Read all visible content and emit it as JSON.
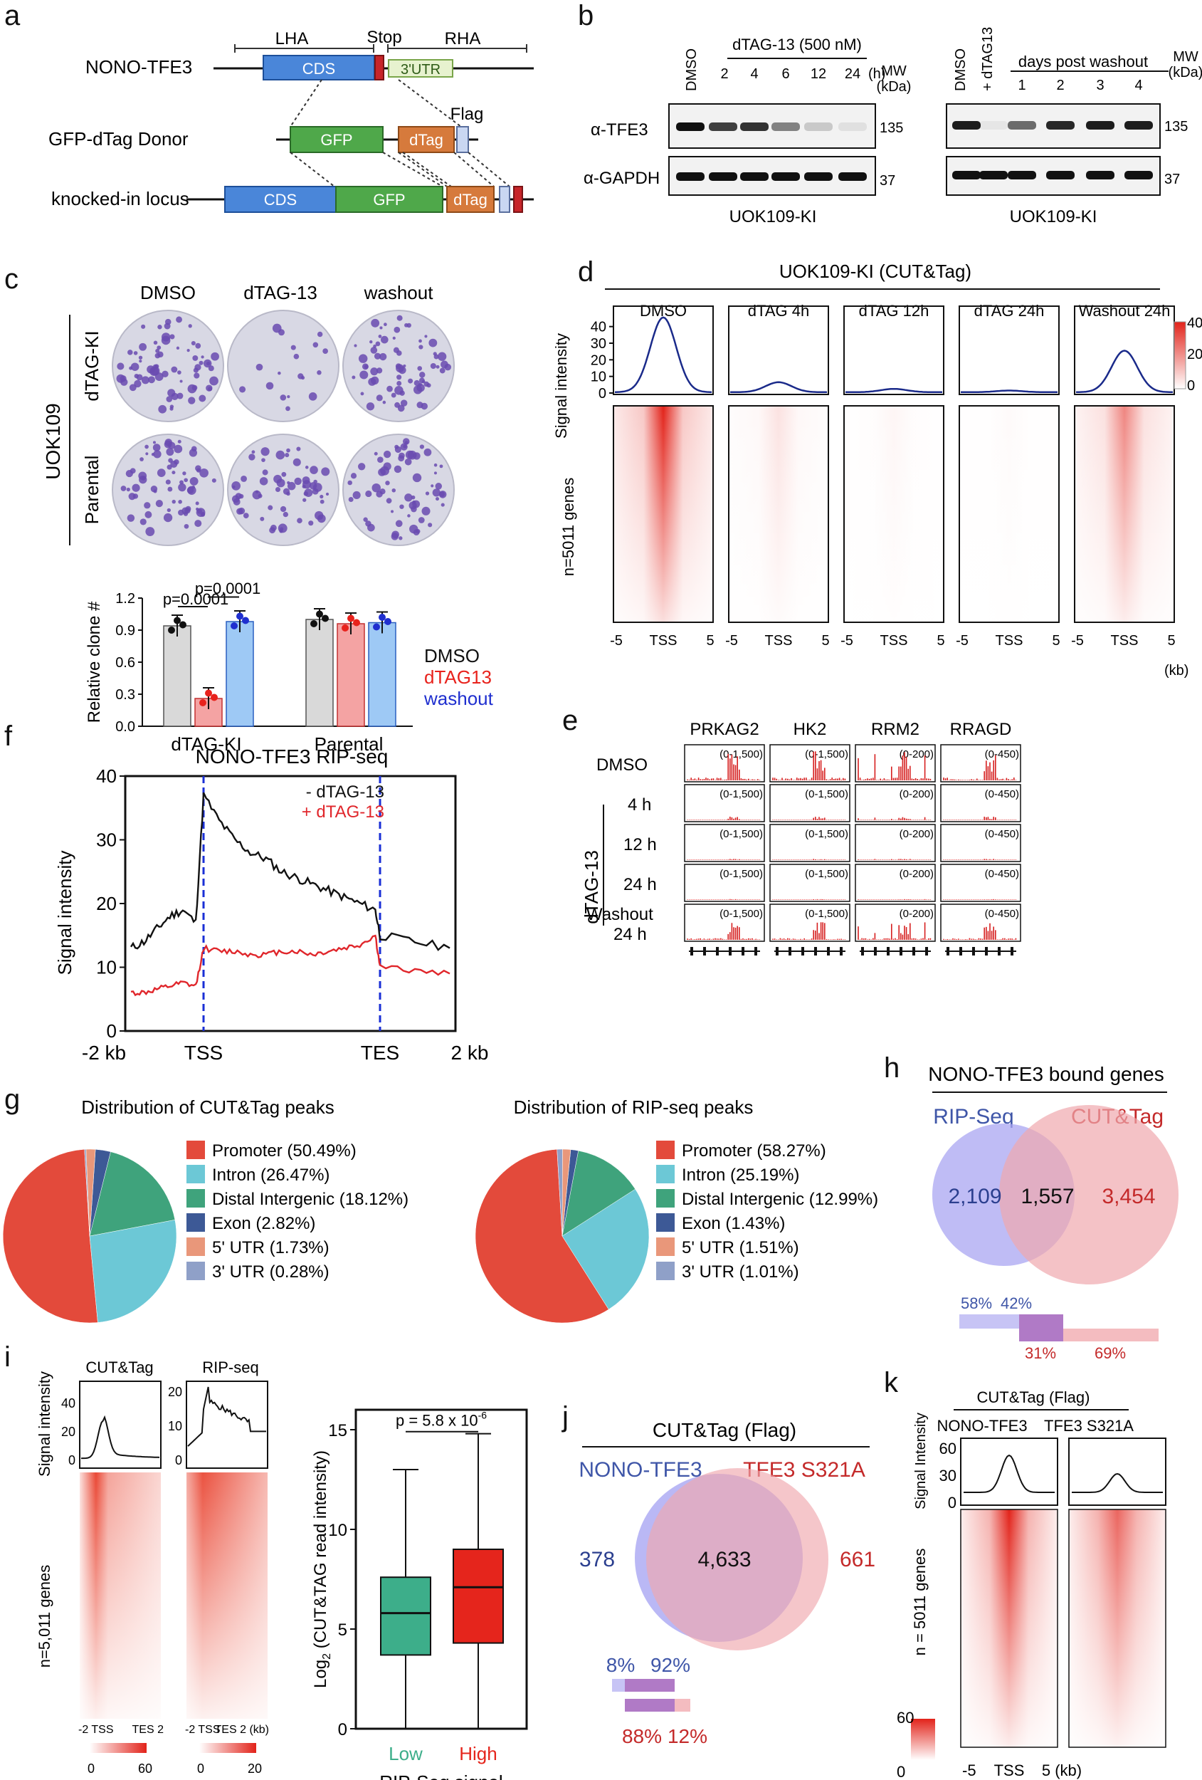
{
  "figure": {
    "panel_letters": [
      "a",
      "b",
      "c",
      "d",
      "e",
      "f",
      "g",
      "h",
      "i",
      "j",
      "k"
    ]
  },
  "panel_a": {
    "construct_label": "NONO-TFE3",
    "lha": "LHA",
    "stop": "Stop",
    "rha": "RHA",
    "cds": "CDS",
    "utr": "3'UTR",
    "donor_label": "GFP-dTag Donor",
    "gfp": "GFP",
    "dtag": "dTag",
    "flag": "Flag",
    "ki_label": "knocked-in locus"
  },
  "panel_b": {
    "blot1": {
      "lanes": [
        "DMSO",
        "2",
        "4",
        "6",
        "12",
        "24"
      ],
      "treatment": "dTAG-13 (500 nM)",
      "hours": "(h)",
      "cell_line": "UOK109-KI"
    },
    "blot2": {
      "lanes": [
        "DMSO",
        "+ dTAG13",
        "1",
        "2",
        "3",
        "4"
      ],
      "treatment": "days post washout",
      "cell_line": "UOK109-KI"
    },
    "mw": "MW",
    "kda": "(kDa)",
    "tfe3": "α-TFE3",
    "gapdh": "α-GAPDH",
    "mw135": "135",
    "mw37": "37"
  },
  "panel_c": {
    "cols": [
      "DMSO",
      "dTAG-13",
      "washout"
    ],
    "rows": [
      "dTAG-KI",
      "Parental"
    ],
    "cell_line": "UOK109",
    "chart_data": {
      "type": "bar",
      "categories": [
        "dTAG-KI",
        "Parental"
      ],
      "series": [
        {
          "name": "DMSO",
          "values": [
            0.94,
            1.0
          ],
          "color": "#d9d9d9"
        },
        {
          "name": "dTAG13",
          "values": [
            0.26,
            0.96
          ],
          "color": "#f4a3a3"
        },
        {
          "name": "washout",
          "values": [
            0.98,
            0.97
          ],
          "color": "#9ec9f5"
        }
      ],
      "ylabel": "Relative clone #",
      "yticks": [
        "0.0",
        "0.3",
        "0.6",
        "0.9",
        "1.2"
      ],
      "ylim": [
        0,
        1.2
      ],
      "annotations": [
        "p=0.0001",
        "p=0.0001"
      ]
    },
    "legend": [
      "DMSO",
      "dTAG13",
      "washout"
    ],
    "legend_colors": [
      "#111111",
      "#e8221c",
      "#1f2fcf"
    ]
  },
  "panel_d": {
    "title": "UOK109-KI (CUT&Tag)",
    "conditions": [
      "DMSO",
      "dTAG 4h",
      "dTAG 12h",
      "dTAG 24h",
      "Washout 24h"
    ],
    "chart_data": {
      "type": "line",
      "profile_peaks": [
        45,
        6,
        2,
        1,
        25
      ],
      "ylabel": "Signal intensity",
      "yticks": [
        "0",
        "10",
        "20",
        "30",
        "40"
      ],
      "ylim": [
        0,
        48
      ],
      "xticks": [
        "-5",
        "TSS",
        "5"
      ],
      "heatmap_scale": [
        "40",
        "20",
        "0"
      ]
    },
    "genes_label": "n=5011 genes",
    "kb": "(kb)"
  },
  "panel_e": {
    "genes": [
      "PRKAG2",
      "HK2",
      "RRM2",
      "RRAGD"
    ],
    "ranges": [
      "(0-1,500)",
      "(0-1,500)",
      "(0-200)",
      "(0-450)"
    ],
    "rows": [
      "DMSO",
      "4 h",
      "12 h",
      "24 h",
      "Washout",
      "24 h"
    ],
    "drug": "dTAG-13"
  },
  "panel_f": {
    "title": "NONO-TFE3 RIP-seq",
    "legend_minus": "- dTAG-13",
    "legend_plus": "+ dTAG-13",
    "chart_data": {
      "type": "line",
      "ylabel": "Signal intensity",
      "yticks": [
        "0",
        "10",
        "20",
        "30",
        "40"
      ],
      "ylim": [
        0,
        40
      ],
      "xticks": [
        "-2 kb",
        "TSS",
        "TES",
        "2 kb"
      ],
      "series": [
        {
          "name": "- dTAG-13",
          "values": [
            13,
            14,
            16,
            18,
            19,
            17,
            37,
            33,
            30,
            28,
            27,
            25,
            24,
            23,
            22,
            21,
            20,
            19,
            15,
            14,
            13
          ]
        },
        {
          "name": "+ dTAG-13",
          "values": [
            6,
            6,
            6.5,
            7,
            7.5,
            7,
            13,
            12.5,
            12.5,
            12,
            12,
            12.5,
            12.5,
            12,
            12.5,
            13,
            13.5,
            15,
            10,
            9.5,
            9
          ]
        }
      ]
    }
  },
  "panel_g": {
    "chart_data": [
      {
        "type": "pie",
        "title": "Distribution of CUT&Tag peaks",
        "labels": [
          "Promoter (50.49%)",
          "Intron (26.47%)",
          "Distal Intergenic (18.12%)",
          "Exon (2.82%)",
          "5' UTR (1.73%)",
          "3' UTR (0.28%)"
        ],
        "values": [
          50.49,
          26.47,
          18.12,
          2.82,
          1.73,
          0.28
        ]
      },
      {
        "type": "pie",
        "title": "Distribution of RIP-seq peaks",
        "labels": [
          "Promoter (58.27%)",
          "Intron (25.19%)",
          "Distal Intergenic (12.99%)",
          "Exon (1.43%)",
          "5' UTR (1.51%)",
          "3' UTR (1.01%)"
        ],
        "values": [
          58.27,
          25.19,
          12.99,
          1.43,
          1.51,
          1.01
        ]
      }
    ],
    "colors": [
      "#e34a3b",
      "#6cc8d6",
      "#3fa37c",
      "#3d5996",
      "#e9977a",
      "#8fa0c8"
    ]
  },
  "panel_h": {
    "title": "NONO-TFE3 bound genes",
    "left": "RIP-Seq",
    "right": "CUT&Tag",
    "n_left": "2,109",
    "n_both": "1,557",
    "n_right": "3,454",
    "p1": "58%",
    "p2": "42%",
    "p3": "31%",
    "p4": "69%"
  },
  "panel_i": {
    "cut": "CUT&Tag",
    "rip": "RIP-seq",
    "ylabel": "Signal intensity",
    "cut_ticks": [
      "0",
      "20",
      "40"
    ],
    "rip_ticks": [
      "0",
      "10",
      "20"
    ],
    "genes_label": "n=5,011 genes",
    "xlab_1": "-2 TSS",
    "xlab_2": "TES 2",
    "xlab_3": "-2 TSS",
    "xlab_4": "TES 2 (kb)",
    "scale1": [
      "0",
      "60"
    ],
    "scale2": [
      "0",
      "20"
    ],
    "chart_data": {
      "type": "box",
      "categories": [
        "Low",
        "High"
      ],
      "medians": [
        5.8,
        7.1
      ],
      "q1": [
        3.7,
        4.3
      ],
      "q3": [
        7.6,
        9.0
      ],
      "whisker_low": [
        0.0,
        0.0
      ],
      "whisker_high": [
        13.0,
        14.8
      ],
      "ylabel": "Log2 (CUT&TAG read intensity)",
      "xlabel": "RIP-Seq signal",
      "yticks": [
        "0",
        "5",
        "10",
        "15"
      ],
      "ylim": [
        0,
        16
      ],
      "pvalue": "p = 5.8 x 10"
    },
    "p_exp": "-6",
    "ylabel_main": "Log",
    "ylabel_sub": "2",
    "ylabel_rest": " (CUT&TAG read intensity)"
  },
  "panel_j": {
    "title": "CUT&Tag (Flag)",
    "left": "NONO-TFE3",
    "right": "TFE3 S321A",
    "n_left": "378",
    "n_both": "4,633",
    "n_right": "661",
    "p1": "8%",
    "p2": "92%",
    "p3": "88%",
    "p4": "12%"
  },
  "panel_k": {
    "title": "CUT&Tag (Flag)",
    "cols": [
      "NONO-TFE3",
      "TFE3 S321A"
    ],
    "ylabel": "Signal Intensity",
    "yticks": [
      "0",
      "30",
      "60"
    ],
    "genes_label": "n = 5011 genes",
    "scale": [
      "60",
      "0"
    ],
    "xlab": "-5",
    "tss": "TSS",
    "kb": "5 (kb)"
  }
}
